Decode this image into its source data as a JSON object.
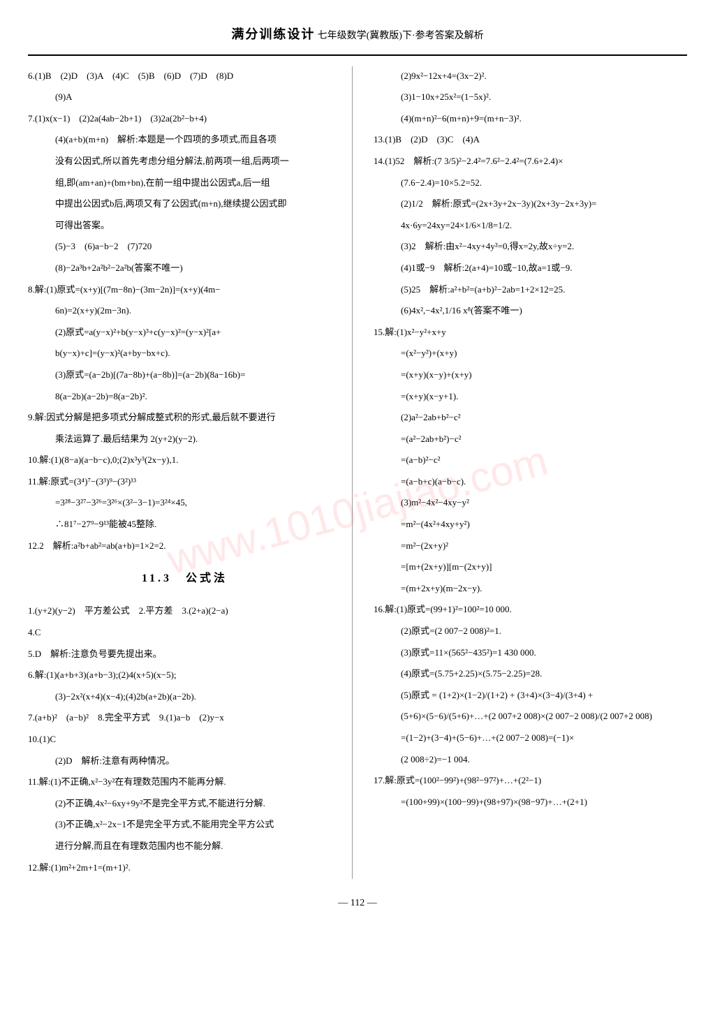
{
  "header": {
    "title": "满分训练设计",
    "subtitle": "七年级数学(冀教版)下·参考答案及解析"
  },
  "left_column": [
    "6.(1)B　(2)D　(3)A　(4)C　(5)B　(6)D　(7)D　(8)D",
    "　(9)A",
    "7.(1)x(x−1)　(2)2a(4ab−2b+1)　(3)2a(2b²−b+4)",
    "　(4)(a+b)(m+n)　解析:本题是一个四项的多项式,而且各项",
    "　没有公因式,所以首先考虑分组分解法,前两项一组,后两项一",
    "　组,即(am+an)+(bm+bn),在前一组中提出公因式a,后一组",
    "　中提出公因式b后,两项又有了公因式(m+n),继续提公因式即",
    "　可得出答案。",
    "　(5)−3　(6)a−b−2　(7)720",
    "　(8)−2a³b+2a²b²−2a²b(答案不唯一)",
    "8.解:(1)原式=(x+y)[(7m−8n)−(3m−2n)]=(x+y)(4m−",
    "　6n)=2(x+y)(2m−3n).",
    "　(2)原式=a(y−x)²+b(y−x)³+c(y−x)²=(y−x)²[a+",
    "　b(y−x)+c]=(y−x)²(a+by−bx+c).",
    "　(3)原式=(a−2b)[(7a−8b)+(a−8b)]=(a−2b)(8a−16b)=",
    "　8(a−2b)(a−2b)=8(a−2b)².",
    "9.解:因式分解是把多项式分解成整式积的形式,最后就不要进行",
    "　乘法运算了.最后结果为 2(y+2)(y−2).",
    "10.解:(1)(8−a)(a−b−c),0;(2)x³y³(2x−y),1.",
    "11.解:原式=(3⁴)⁷−(3³)⁹−(3²)¹³",
    "　=3²⁸−3²⁷−3²⁶=3²⁶×(3²−3−1)=3²⁴×45,",
    "　∴81⁷−27⁹−9¹³能被45整除.",
    "12.2　解析:a²b+ab²=ab(a+b)=1×2=2."
  ],
  "section_title": "11.3　公式法",
  "left_column_2": [
    "1.(y+2)(y−2)　平方差公式　2.平方差　3.(2+a)(2−a)",
    "4.C",
    "5.D　解析:注意负号要先提出来。",
    "6.解:(1)(a+b+3)(a+b−3);(2)4(x+5)(x−5);",
    "　(3)−2x²(x+4)(x−4);(4)2b(a+2b)(a−2b).",
    "7.(a+b)²　(a−b)²　8.完全平方式　9.(1)a−b　(2)y−x",
    "10.(1)C",
    "　(2)D　解析:注意有两种情况。",
    "11.解:(1)不正确,x²−3y²在有理数范围内不能再分解.",
    "　(2)不正确,4x²−6xy+9y²不是完全平方式,不能进行分解.",
    "　(3)不正确,x²−2x−1不是完全平方式,不能用完全平方公式",
    "　进行分解,而且在有理数范围内也不能分解.",
    "12.解:(1)m²+2m+1=(m+1)²."
  ],
  "right_column": [
    "　(2)9x²−12x+4=(3x−2)².",
    "　(3)1−10x+25x²=(1−5x)².",
    "　(4)(m+n)²−6(m+n)+9=(m+n−3)².",
    "13.(1)B　(2)D　(3)C　(4)A",
    "14.(1)52　解析:(7 3/5)²−2.4²=7.6²−2.4²=(7.6+2.4)×",
    "　(7.6−2.4)=10×5.2=52.",
    "　(2)1/2　解析:原式=(2x+3y+2x−3y)(2x+3y−2x+3y)=",
    "　4x·6y=24xy=24×1/6×1/8=1/2.",
    "　(3)2　解析:由x²−4xy+4y²=0,得x=2y,故x÷y=2.",
    "　(4)1或−9　解析:2(a+4)=10或−10,故a=1或−9.",
    "　(5)25　解析:a²+b²=(a+b)²−2ab=1+2×12=25.",
    "　(6)4x²,−4x²,1/16 x⁸(答案不唯一)",
    "15.解:(1)x²−y²+x+y",
    "　=(x²−y²)+(x+y)",
    "　=(x+y)(x−y)+(x+y)",
    "　=(x+y)(x−y+1).",
    "　(2)a²−2ab+b²−c²",
    "　=(a²−2ab+b²)−c²",
    "　=(a−b)²−c²",
    "　=(a−b+c)(a−b−c).",
    "　(3)m²−4x²−4xy−y²",
    "　=m²−(4x²+4xy+y²)",
    "　=m²−(2x+y)²",
    "　=[m+(2x+y)][m−(2x+y)]",
    "　=(m+2x+y)(m−2x−y).",
    "16.解:(1)原式=(99+1)²=100²=10 000.",
    "　(2)原式=(2 007−2 008)²=1.",
    "　(3)原式=11×(565²−435²)=1 430 000.",
    "　(4)原式=(5.75+2.25)×(5.75−2.25)=28.",
    "　(5)原式 = (1+2)×(1−2)/(1+2) + (3+4)×(3−4)/(3+4) +",
    "　(5+6)×(5−6)/(5+6)+…+(2 007+2 008)×(2 007−2 008)/(2 007+2 008)",
    "　=(1−2)+(3−4)+(5−6)+…+(2 007−2 008)=(−1)×",
    "　(2 008÷2)=−1 004.",
    "17.解:原式=(100²−99²)+(98²−97²)+…+(2²−1)",
    "　=(100+99)×(100−99)+(98+97)×(98−97)+…+(2+1)"
  ],
  "page_number": "112",
  "watermark_text": "www.1010jiajiao.com",
  "styling": {
    "body_font_size": 13,
    "header_font_size": 18,
    "line_height": 2.2,
    "text_color": "#000000",
    "background_color": "#ffffff",
    "border_color": "#999999",
    "watermark_color": "rgba(255,100,100,0.15)"
  }
}
